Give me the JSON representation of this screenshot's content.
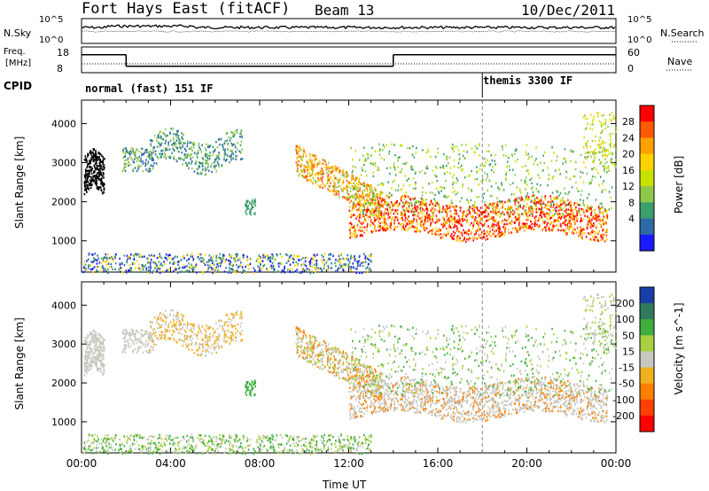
{
  "header": {
    "title": "Fort Hays East (fitACF)",
    "beam": "Beam 13",
    "date": "10/Dec/2011"
  },
  "panels": {
    "noise": {
      "left_label": "N.Sky",
      "right_label": "N.Search",
      "left_ticks": [
        "10^5",
        "10^0"
      ],
      "right_ticks": [
        "10^5",
        "10^0"
      ]
    },
    "freq": {
      "left_label": "Freq.",
      "left_unit": "[MHz]",
      "right_label": "Nave",
      "left_ticks": [
        "18",
        "8"
      ],
      "right_ticks": [
        "60",
        "0"
      ],
      "steps": [
        {
          "start": "00:00",
          "end": "02:00",
          "freq_mhz": 15
        },
        {
          "start": "02:00",
          "end": "14:00",
          "freq_mhz": 10.5
        },
        {
          "start": "14:00",
          "end": "24:00",
          "freq_mhz": 15
        }
      ]
    },
    "cpid": {
      "label": "CPID",
      "programs": [
        {
          "name": "normal (fast) 151 IF",
          "start": "00:00",
          "end": "18:00"
        },
        {
          "name": "themis 3300 IF",
          "start": "18:00",
          "end": "24:00"
        }
      ]
    }
  },
  "chart_data": [
    {
      "type": "heatmap",
      "name": "power",
      "ylabel": "Slant Range [km]",
      "colorbar_label": "Power [dB]",
      "colorbar_ticks": [
        "28",
        "24",
        "20",
        "16",
        "12",
        "8",
        "4"
      ],
      "colorbar_colors": [
        "#ff0000",
        "#ff5a00",
        "#ffa200",
        "#ffd200",
        "#c8e000",
        "#8ec84b",
        "#3c9e6c",
        "#2f6aa8",
        "#1a1aff"
      ],
      "yticks": [
        1000,
        2000,
        3000,
        4000
      ],
      "ylim": [
        200,
        4600
      ]
    },
    {
      "type": "heatmap",
      "name": "velocity",
      "ylabel": "Slant Range [km]",
      "colorbar_label": "Velocity [m s^-1]",
      "colorbar_ticks": [
        "200",
        "100",
        "50",
        "15",
        "-15",
        "-50",
        "-100",
        "-200"
      ],
      "colorbar_colors": [
        "#1a3ea8",
        "#2f7a5a",
        "#3fae3f",
        "#a8d040",
        "#c8c8c0",
        "#f0b020",
        "#ff8000",
        "#ff4000",
        "#ff0000"
      ],
      "yticks": [
        1000,
        2000,
        3000,
        4000
      ],
      "ylim": [
        200,
        4600
      ]
    }
  ],
  "axis": {
    "xticks": [
      "00:00",
      "04:00",
      "08:00",
      "12:00",
      "16:00",
      "20:00",
      "00:00"
    ],
    "xlim_hours": [
      0,
      24
    ],
    "marker_hour": 18
  }
}
